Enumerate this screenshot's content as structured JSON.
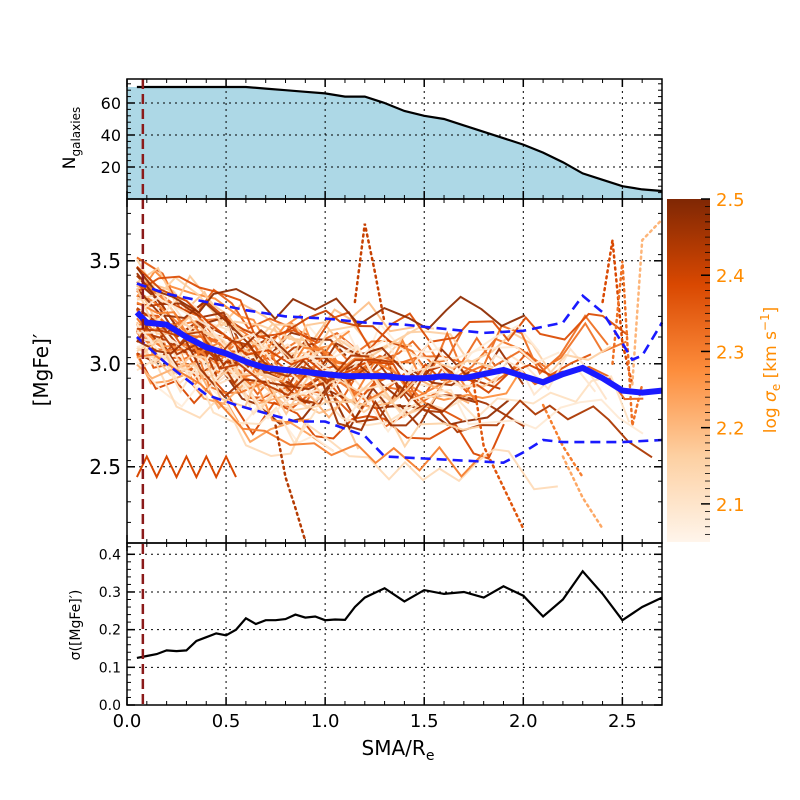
{
  "chart_data": [
    {
      "panel": "top",
      "type": "area",
      "ylabel_main": "N",
      "ylabel_sub": "galaxies",
      "xlim": [
        0.0,
        2.7
      ],
      "ylim": [
        0,
        75
      ],
      "yticks": [
        "20",
        "40",
        "60"
      ],
      "ytick_values": [
        20,
        40,
        60
      ],
      "grid": true,
      "fill_color": "#add8e6",
      "series": [
        {
          "x": [
            0.05,
            0.3,
            0.6,
            0.7,
            0.8,
            0.9,
            1.0,
            1.1,
            1.2,
            1.3,
            1.4,
            1.5,
            1.6,
            1.7,
            1.8,
            1.9,
            2.0,
            2.1,
            2.2,
            2.3,
            2.4,
            2.5,
            2.6,
            2.7
          ],
          "values": [
            70,
            70,
            70,
            69,
            68,
            67,
            66,
            64,
            64,
            60,
            55,
            52,
            50,
            46,
            42,
            38,
            34,
            29,
            23,
            16,
            12,
            8,
            6,
            5
          ]
        }
      ]
    },
    {
      "panel": "middle",
      "type": "line",
      "ylabel": "[MgFe]′",
      "xlim": [
        0.0,
        2.7
      ],
      "ylim": [
        2.13,
        3.8
      ],
      "yticks": [
        "2.5",
        "3.0",
        "3.5"
      ],
      "ytick_values": [
        2.5,
        3.0,
        3.5
      ],
      "grid": true,
      "colorbar": {
        "label": "log σ_e [km s^-1]",
        "ticks": [
          "2.1",
          "2.2",
          "2.3",
          "2.4",
          "2.5"
        ],
        "tick_values": [
          2.1,
          2.2,
          2.3,
          2.4,
          2.5
        ],
        "range": [
          2.05,
          2.5
        ],
        "color_low": "#fff5eb",
        "color_high": "#7f2704",
        "label_color": "#ff8c00"
      },
      "median": {
        "color": "#1a1aff",
        "x": [
          0.05,
          0.1,
          0.2,
          0.3,
          0.4,
          0.5,
          0.6,
          0.7,
          0.8,
          0.9,
          1.0,
          1.1,
          1.2,
          1.3,
          1.4,
          1.5,
          1.6,
          1.7,
          1.8,
          1.9,
          2.0,
          2.1,
          2.2,
          2.3,
          2.4,
          2.5,
          2.6,
          2.7
        ],
        "values": [
          3.25,
          3.2,
          3.19,
          3.13,
          3.08,
          3.05,
          3.01,
          2.98,
          2.97,
          2.96,
          2.95,
          2.94,
          2.94,
          2.94,
          2.93,
          2.93,
          2.94,
          2.93,
          2.95,
          2.97,
          2.94,
          2.91,
          2.95,
          2.98,
          2.93,
          2.87,
          2.86,
          2.87
        ]
      },
      "upper_band": {
        "color": "#1a1aff",
        "x": [
          0.05,
          0.2,
          0.4,
          0.6,
          0.8,
          1.0,
          1.2,
          1.4,
          1.6,
          1.8,
          2.0,
          2.2,
          2.3,
          2.4,
          2.5,
          2.55,
          2.6,
          2.7
        ],
        "values": [
          3.39,
          3.34,
          3.3,
          3.26,
          3.23,
          3.22,
          3.2,
          3.19,
          3.17,
          3.15,
          3.16,
          3.2,
          3.33,
          3.25,
          3.1,
          3.02,
          3.04,
          3.2
        ]
      },
      "lower_band": {
        "color": "#1a1aff",
        "x": [
          0.05,
          0.2,
          0.4,
          0.55,
          0.7,
          0.85,
          1.0,
          1.2,
          1.3,
          1.5,
          1.7,
          1.9,
          2.0,
          2.1,
          2.2,
          2.3,
          2.5,
          2.7
        ],
        "values": [
          3.13,
          3.0,
          2.85,
          2.8,
          2.76,
          2.72,
          2.72,
          2.65,
          2.55,
          2.54,
          2.53,
          2.52,
          2.57,
          2.63,
          2.62,
          2.62,
          2.62,
          2.63
        ]
      },
      "dotted_tails": [
        {
          "x": [
            1.15,
            1.2,
            1.25,
            1.3
          ],
          "values": [
            3.3,
            3.68,
            3.45,
            3.2
          ],
          "level": 0.8
        },
        {
          "x": [
            2.4,
            2.45,
            2.5,
            2.55
          ],
          "values": [
            3.3,
            3.6,
            3.1,
            2.9
          ],
          "level": 0.75
        },
        {
          "x": [
            2.45,
            2.5,
            2.55,
            2.6
          ],
          "values": [
            3.0,
            3.5,
            2.7,
            2.9
          ],
          "level": 0.6
        },
        {
          "x": [
            1.75,
            1.8,
            1.9,
            2.0
          ],
          "values": [
            2.9,
            2.6,
            2.4,
            2.2
          ],
          "level": 0.7
        },
        {
          "x": [
            0.75,
            0.8,
            0.85,
            0.9
          ],
          "values": [
            2.7,
            2.45,
            2.3,
            2.14
          ],
          "level": 0.85
        },
        {
          "x": [
            2.2,
            2.3,
            2.4
          ],
          "values": [
            2.55,
            2.35,
            2.2
          ],
          "level": 0.4
        },
        {
          "x": [
            2.55,
            2.6,
            2.7
          ],
          "values": [
            2.9,
            3.6,
            3.7
          ],
          "level": 0.35
        },
        {
          "x": [
            2.1,
            2.2,
            2.3
          ],
          "values": [
            2.8,
            2.6,
            2.45
          ],
          "level": 0.55
        }
      ]
    },
    {
      "panel": "bottom",
      "type": "line",
      "xlabel": "SMA/R",
      "xlabel_sub": "e",
      "ylabel": "σ([MgFe]′)",
      "xlim": [
        0.0,
        2.7
      ],
      "ylim": [
        0.0,
        0.43
      ],
      "xticks": [
        "0.0",
        "0.5",
        "1.0",
        "1.5",
        "2.0",
        "2.5"
      ],
      "xtick_values": [
        0.0,
        0.5,
        1.0,
        1.5,
        2.0,
        2.5
      ],
      "yticks": [
        "0.0",
        "0.1",
        "0.2",
        "0.3",
        "0.4"
      ],
      "ytick_values": [
        0.0,
        0.1,
        0.2,
        0.3,
        0.4
      ],
      "grid": true,
      "series": [
        {
          "x": [
            0.05,
            0.1,
            0.15,
            0.2,
            0.25,
            0.3,
            0.35,
            0.4,
            0.45,
            0.5,
            0.55,
            0.6,
            0.65,
            0.7,
            0.75,
            0.8,
            0.85,
            0.9,
            0.95,
            1.0,
            1.05,
            1.1,
            1.15,
            1.2,
            1.3,
            1.4,
            1.5,
            1.6,
            1.7,
            1.8,
            1.9,
            2.0,
            2.1,
            2.2,
            2.3,
            2.4,
            2.5,
            2.6,
            2.7
          ],
          "values": [
            0.125,
            0.13,
            0.135,
            0.145,
            0.143,
            0.145,
            0.17,
            0.18,
            0.19,
            0.185,
            0.2,
            0.23,
            0.215,
            0.225,
            0.225,
            0.228,
            0.24,
            0.232,
            0.235,
            0.225,
            0.227,
            0.226,
            0.26,
            0.285,
            0.31,
            0.275,
            0.305,
            0.295,
            0.3,
            0.285,
            0.315,
            0.29,
            0.235,
            0.28,
            0.355,
            0.295,
            0.225,
            0.26,
            0.285
          ]
        }
      ]
    }
  ],
  "reference_line": {
    "x": 0.08,
    "color": "#8b1a1a"
  }
}
